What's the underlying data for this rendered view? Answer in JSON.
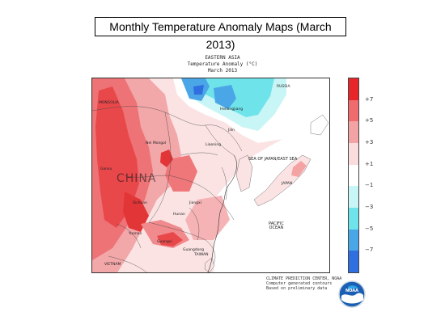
{
  "slide": {
    "title": "Monthly Temperature Anomaly Maps (March 2013)"
  },
  "map": {
    "header": [
      "EASTERN ASIA",
      "Temperature Anomaly (°C)",
      "March 2013"
    ],
    "places": {
      "mongolia": "MONGOLIA",
      "russia": "RUSSIA",
      "heilongjiang": "Heilongjiang",
      "jilin": "Jilin",
      "liaoning": "Liaoning",
      "nei_mongol": "Nei Mongol",
      "china": "CHINA",
      "gansu": "Gansu",
      "sichuan": "Sichuan",
      "hunan": "Hunan",
      "yunnan": "Yunnan",
      "jiangxi": "Jiangxi",
      "guangxi": "Guangxi",
      "guangdong": "Guangdong",
      "vietnam": "VIETNAM",
      "taiwan": "TAIWAN",
      "japan": "JAPAN",
      "sea_of_japan": "SEA OF JAPAN/EAST SEA",
      "pacific_ocean": "PACIFIC\nOCEAN"
    }
  },
  "legend": {
    "labels": [
      "+7",
      "+5",
      "+3",
      "+1",
      "−1",
      "−3",
      "−5",
      "−7"
    ],
    "colors": [
      "#e8262a",
      "#ef6b6e",
      "#f4a3a5",
      "#fbdcdc",
      "#ffffff",
      "#c8f5f5",
      "#6fe3ea",
      "#4aa6e6",
      "#2f6fdf"
    ]
  },
  "credits": [
    "CLIMATE PREDICTION CENTER, NOAA",
    "Computer generated contours",
    "Based on preliminary data"
  ],
  "logo": {
    "text": "NOAA"
  }
}
